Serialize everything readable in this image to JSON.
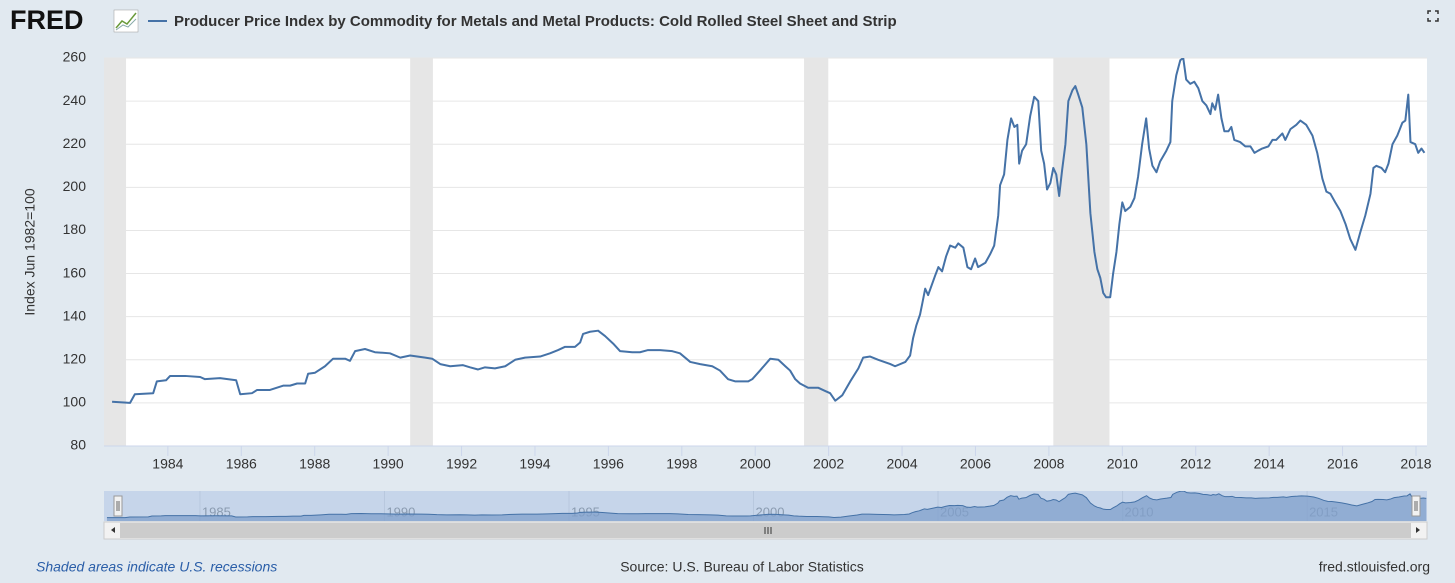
{
  "logo": "FRED",
  "footer": {
    "recession_note": "Shaded areas indicate U.S. recessions",
    "source": "Source: U.S. Bureau of Labor Statistics",
    "site": "fred.stlouisfed.org"
  },
  "chart_data": {
    "type": "line",
    "y_label": "Index Jun 1982=100",
    "xlim": [
      1982.26,
      2018.3
    ],
    "xticks": [
      1984,
      1986,
      1988,
      1990,
      1992,
      1994,
      1996,
      1998,
      2000,
      2002,
      2004,
      2006,
      2008,
      2010,
      2012,
      2014,
      2016,
      2018
    ],
    "ylim": [
      80,
      260
    ],
    "yticks": [
      80,
      100,
      120,
      140,
      160,
      180,
      200,
      220,
      240,
      260
    ],
    "grid": true,
    "recessions": [
      [
        1981.5,
        1982.86
      ],
      [
        1990.6,
        1991.22
      ],
      [
        2001.33,
        2001.99
      ],
      [
        2008.12,
        2009.65
      ]
    ],
    "navigator_xlim": [
      1982.4,
      2018.25
    ],
    "navigator_xticks": [
      1985,
      1990,
      1995,
      2000,
      2005,
      2010,
      2015
    ],
    "x": [
      1982.48,
      1982.97,
      1983.1,
      1983.6,
      1983.7,
      1983.95,
      1984.06,
      1984.47,
      1984.88,
      1985.01,
      1985.42,
      1985.86,
      1985.97,
      1986.29,
      1986.43,
      1986.78,
      1987.14,
      1987.33,
      1987.52,
      1987.74,
      1987.82,
      1988.01,
      1988.28,
      1988.5,
      1988.83,
      1988.96,
      1989.1,
      1989.37,
      1989.64,
      1990.05,
      1990.33,
      1990.6,
      1991.01,
      1991.2,
      1991.42,
      1991.69,
      1992.04,
      1992.23,
      1992.45,
      1992.64,
      1992.91,
      1993.19,
      1993.46,
      1993.73,
      1994.14,
      1994.41,
      1994.63,
      1994.82,
      1995.09,
      1995.23,
      1995.31,
      1995.5,
      1995.72,
      1995.91,
      1996.13,
      1996.32,
      1996.65,
      1996.86,
      1997.08,
      1997.41,
      1997.74,
      1997.95,
      1998.23,
      1998.5,
      1998.83,
      1999.04,
      1999.26,
      1999.45,
      1999.81,
      1999.92,
      2000.13,
      2000.41,
      2000.63,
      2000.82,
      2000.95,
      2001.09,
      2001.22,
      2001.44,
      2001.72,
      2001.91,
      2002.04,
      2002.18,
      2002.37,
      2002.59,
      2002.81,
      2002.94,
      2003.13,
      2003.35,
      2003.68,
      2003.81,
      2004.09,
      2004.22,
      2004.3,
      2004.39,
      2004.49,
      2004.55,
      2004.63,
      2004.71,
      2004.9,
      2004.99,
      2005.09,
      2005.2,
      2005.31,
      2005.45,
      2005.53,
      2005.67,
      2005.78,
      2005.88,
      2005.99,
      2006.07,
      2006.27,
      2006.4,
      2006.51,
      2006.62,
      2006.67,
      2006.78,
      2006.87,
      2006.97,
      2007.06,
      2007.14,
      2007.19,
      2007.27,
      2007.38,
      2007.49,
      2007.6,
      2007.71,
      2007.79,
      2007.87,
      2007.95,
      2008.04,
      2008.12,
      2008.2,
      2008.28,
      2008.36,
      2008.45,
      2008.53,
      2008.64,
      2008.72,
      2008.8,
      2008.91,
      2009.02,
      2009.13,
      2009.24,
      2009.32,
      2009.4,
      2009.48,
      2009.56,
      2009.67,
      2009.75,
      2009.84,
      2009.92,
      2010.0,
      2010.08,
      2010.22,
      2010.33,
      2010.43,
      2010.54,
      2010.65,
      2010.73,
      2010.82,
      2010.93,
      2011.03,
      2011.2,
      2011.31,
      2011.36,
      2011.47,
      2011.58,
      2011.66,
      2011.74,
      2011.85,
      2011.96,
      2012.07,
      2012.18,
      2012.29,
      2012.4,
      2012.45,
      2012.53,
      2012.61,
      2012.7,
      2012.78,
      2012.89,
      2012.97,
      2013.05,
      2013.21,
      2013.35,
      2013.49,
      2013.6,
      2013.7,
      2013.81,
      2013.98,
      2014.09,
      2014.19,
      2014.36,
      2014.44,
      2014.58,
      2014.74,
      2014.85,
      2015.01,
      2015.18,
      2015.31,
      2015.45,
      2015.56,
      2015.67,
      2015.8,
      2015.94,
      2016.08,
      2016.21,
      2016.35,
      2016.48,
      2016.62,
      2016.76,
      2016.84,
      2016.92,
      2017.06,
      2017.16,
      2017.25,
      2017.36,
      2017.49,
      2017.63,
      2017.71,
      2017.79,
      2017.85,
      2017.98,
      2018.06,
      2018.15,
      2018.23
    ],
    "series": [
      {
        "name": "Producer Price Index by Commodity for Metals and Metal Products: Cold Rolled Steel Sheet and Strip",
        "color": "#4572a7",
        "values": [
          100.5,
          100,
          104,
          104.5,
          110,
          110.5,
          112.5,
          112.5,
          112,
          111,
          111.5,
          110.5,
          104,
          104.5,
          106,
          106,
          108,
          108,
          109,
          109,
          113.5,
          114,
          117,
          120.5,
          120.5,
          119.5,
          124,
          125,
          123.5,
          123,
          121,
          122,
          121,
          120.5,
          118,
          117,
          117.5,
          116.5,
          115.5,
          116.5,
          116,
          117,
          120,
          121,
          121.5,
          123,
          124.5,
          126,
          126,
          128,
          132,
          133,
          133.5,
          131,
          127.5,
          124,
          123.5,
          123.5,
          124.5,
          124.5,
          124,
          123,
          119,
          118,
          117,
          115,
          111,
          110,
          110,
          111,
          115,
          120.5,
          120,
          117,
          115,
          111,
          109,
          107,
          107,
          105.5,
          104.5,
          101,
          103.5,
          110,
          116,
          121,
          121.5,
          120,
          118,
          117,
          119,
          122,
          130,
          136,
          141,
          146,
          153,
          150,
          159,
          163,
          161,
          168,
          173,
          172,
          174,
          172,
          163,
          162,
          167,
          163,
          165,
          169,
          173,
          187,
          201,
          206,
          222,
          232,
          228,
          229,
          211,
          217,
          220,
          233,
          242,
          240,
          217,
          211,
          199,
          202,
          209,
          206,
          196,
          208,
          220,
          240,
          245,
          247,
          243,
          237,
          220,
          188,
          170,
          162,
          158,
          151,
          149,
          149,
          160,
          170,
          183,
          193,
          189,
          191,
          195,
          205,
          220,
          232,
          218,
          210,
          207,
          212,
          217,
          221,
          240,
          252,
          259,
          260,
          250,
          248,
          249,
          246,
          240,
          238,
          234,
          239,
          236,
          243,
          232,
          226,
          226,
          228,
          222,
          221,
          219,
          219,
          216,
          217,
          218,
          219,
          222,
          222,
          225,
          222,
          227,
          229,
          231,
          229,
          224,
          216,
          204,
          198,
          197,
          193,
          189,
          183,
          176,
          171,
          179,
          187,
          197,
          209,
          210,
          209,
          207,
          211,
          220,
          224,
          230,
          231,
          243,
          221,
          220,
          216,
          218,
          216
        ]
      }
    ]
  }
}
